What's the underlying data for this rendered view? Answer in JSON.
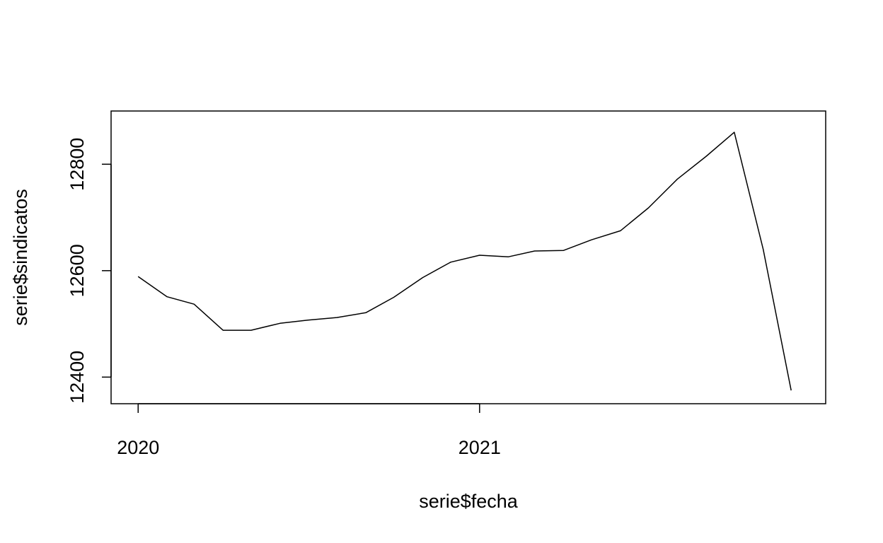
{
  "chart_data": {
    "type": "line",
    "title": "",
    "xlabel": "serie$fecha",
    "ylabel": "serie$sindicatos",
    "x_ticks": [
      {
        "date": "2020-01-01",
        "label": "2020"
      },
      {
        "date": "2021-01-01",
        "label": "2021"
      }
    ],
    "y_ticks": [
      12400,
      12600,
      12800
    ],
    "ylim": [
      12350,
      12900
    ],
    "xlim": [
      "2019-12-03",
      "2022-01-07"
    ],
    "grid": false,
    "line_color": "#000000",
    "series": [
      {
        "x": [
          "2020-01-01",
          "2020-02-01",
          "2020-03-01",
          "2020-04-01",
          "2020-05-01",
          "2020-06-01",
          "2020-07-01",
          "2020-08-01",
          "2020-09-01",
          "2020-10-01",
          "2020-11-01",
          "2020-12-01",
          "2021-01-01",
          "2021-02-01",
          "2021-03-01",
          "2021-04-01",
          "2021-05-01",
          "2021-06-01",
          "2021-07-01",
          "2021-08-01",
          "2021-09-01",
          "2021-10-01",
          "2021-11-01",
          "2021-12-01"
        ],
        "values": [
          12589,
          12551,
          12537,
          12488,
          12488,
          12501,
          12507,
          12512,
          12521,
          12550,
          12587,
          12616,
          12629,
          12626,
          12637,
          12638,
          12658,
          12675,
          12718,
          12772,
          12815,
          12860,
          12640,
          12375
        ]
      }
    ]
  }
}
